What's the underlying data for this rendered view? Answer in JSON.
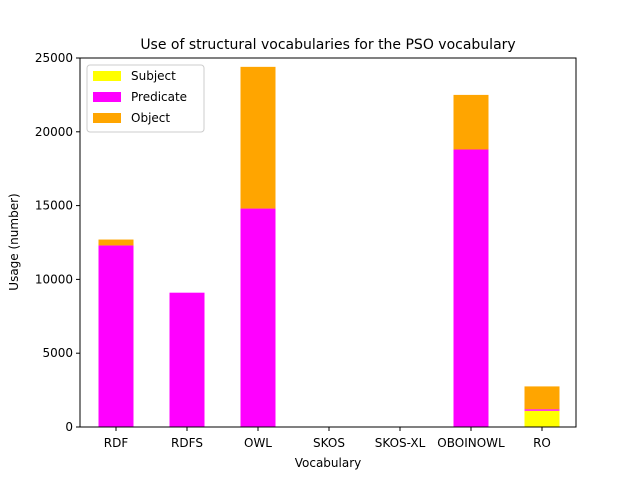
{
  "chart_data": {
    "type": "bar",
    "stacked": true,
    "title": "Use of structural vocabularies for the PSO vocabulary",
    "xlabel": "Vocabulary",
    "ylabel": "Usage (number)",
    "ylim": [
      0,
      25000
    ],
    "yticks": [
      0,
      5000,
      10000,
      15000,
      20000,
      25000
    ],
    "categories": [
      "RDF",
      "RDFS",
      "OWL",
      "SKOS",
      "SKOS-XL",
      "OBOINOWL",
      "RO"
    ],
    "series": [
      {
        "name": "Subject",
        "color": "#ffff00",
        "values": [
          0,
          0,
          0,
          0,
          0,
          0,
          1100
        ]
      },
      {
        "name": "Predicate",
        "color": "#ff00ff",
        "values": [
          12300,
          9100,
          14800,
          0,
          0,
          18800,
          100
        ]
      },
      {
        "name": "Object",
        "color": "#ffa500",
        "values": [
          400,
          0,
          9600,
          0,
          0,
          3700,
          1550
        ]
      }
    ],
    "grid": false,
    "legend_position": "top-left"
  }
}
